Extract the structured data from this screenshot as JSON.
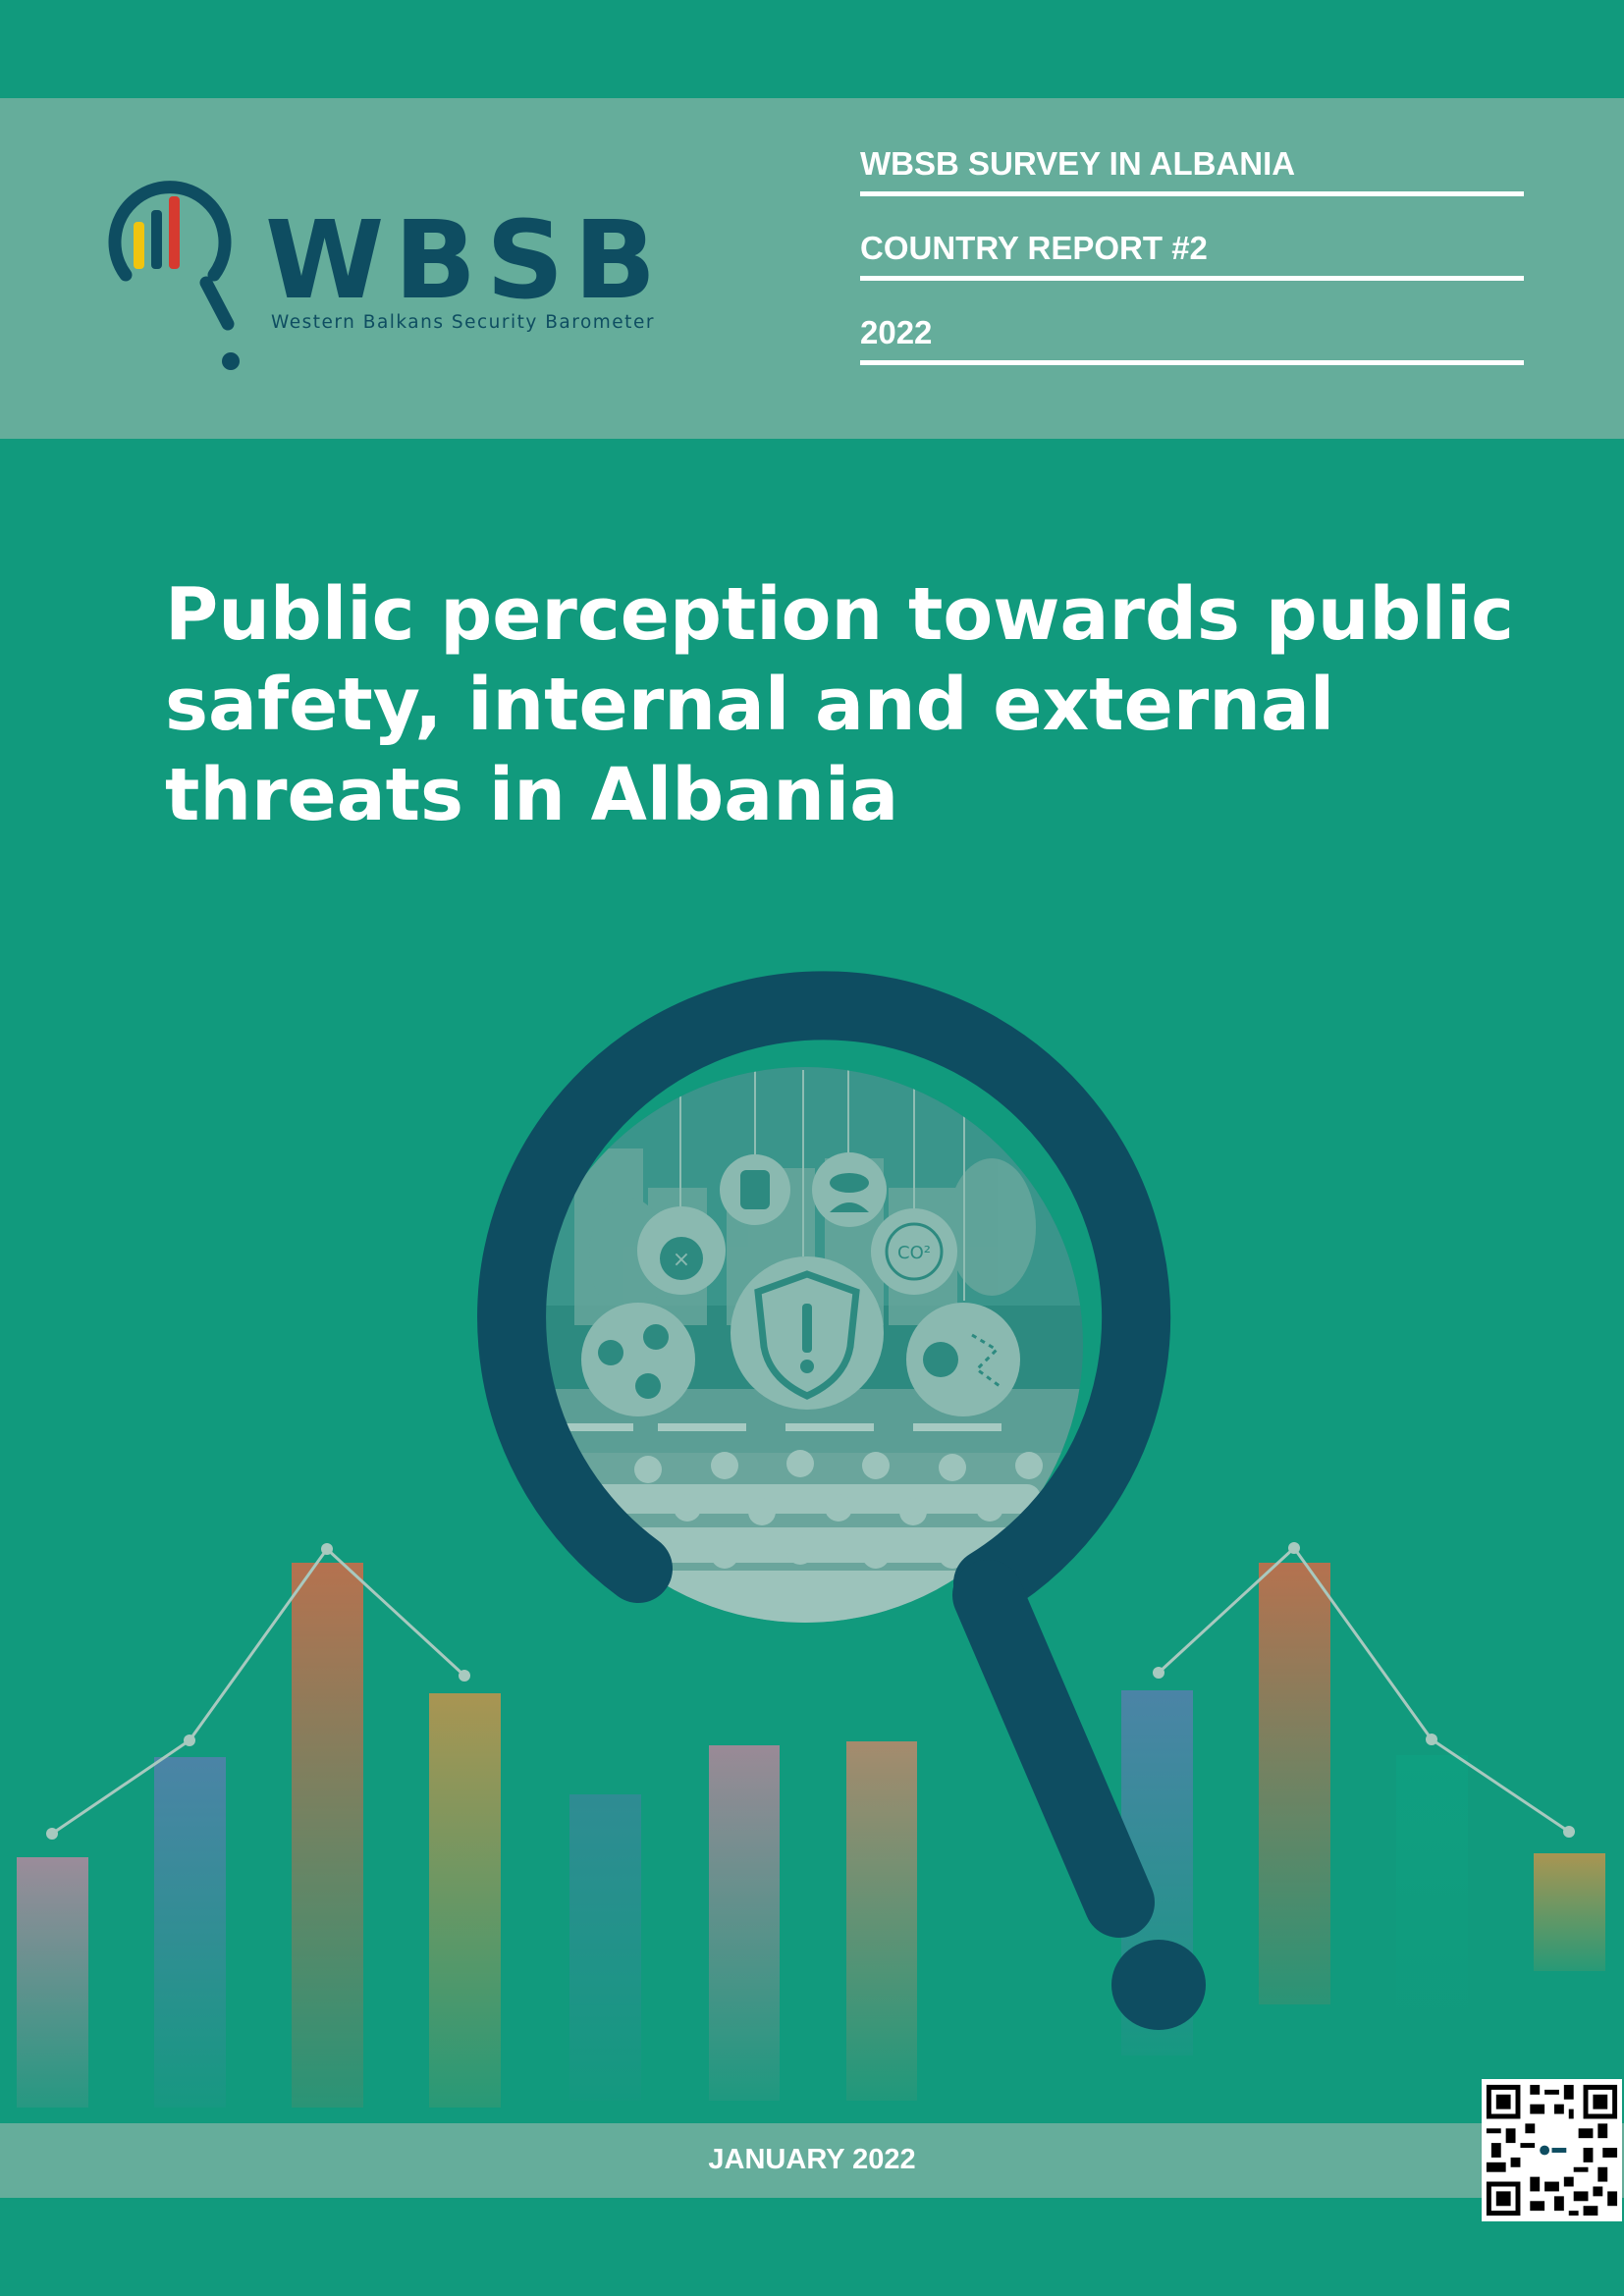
{
  "header": {
    "brand": {
      "wordmark": "WBSB",
      "tagline": "Western Balkans Security Barometer"
    },
    "meta_lines": [
      "WBSB SURVEY IN ALBANIA",
      "COUNTRY REPORT #2",
      "2022"
    ]
  },
  "title_lines": [
    "Public perception towards public",
    "safety, internal and external",
    "threats in Albania"
  ],
  "footer": {
    "date": "JANUARY 2022"
  },
  "colors": {
    "background": "#119a7d",
    "band": "#65ad9b",
    "navy": "#0e4d61",
    "text": "#ffffff"
  },
  "icons": [
    "magnifier-logo-icon",
    "magnifying-glass-illustration",
    "shield-alert-icon",
    "virus-icon",
    "bomb-icon",
    "co2-icon",
    "spy-icon",
    "thief-icon",
    "qr-code"
  ]
}
